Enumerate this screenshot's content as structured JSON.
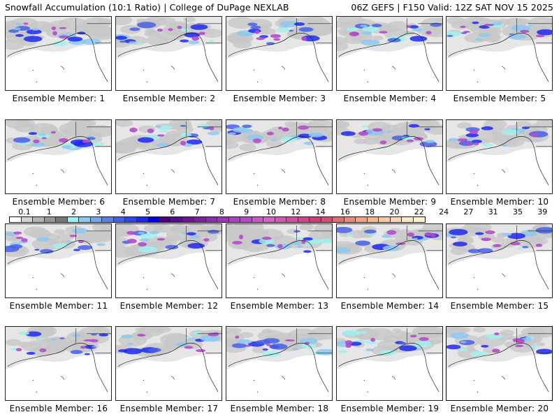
{
  "header": {
    "title_left": "Snowfall Accumulation (10:1 Ratio) | College of DuPage NEXLAB",
    "title_right": "06Z GEFS | F150 Valid: 12Z SAT NOV 15 2025"
  },
  "panels": [
    {
      "label": "Ensemble Member: 1"
    },
    {
      "label": "Ensemble Member: 2"
    },
    {
      "label": "Ensemble Member: 3"
    },
    {
      "label": "Ensemble Member: 4"
    },
    {
      "label": "Ensemble Member: 5"
    },
    {
      "label": "Ensemble Member: 6"
    },
    {
      "label": "Ensemble Member: 7"
    },
    {
      "label": "Ensemble Member: 8"
    },
    {
      "label": "Ensemble Member: 9"
    },
    {
      "label": "Ensemble Member: 10"
    },
    {
      "label": "Ensemble Member: 11"
    },
    {
      "label": "Ensemble Member: 12"
    },
    {
      "label": "Ensemble Member: 13"
    },
    {
      "label": "Ensemble Member: 14"
    },
    {
      "label": "Ensemble Member: 15"
    },
    {
      "label": "Ensemble Member: 16"
    },
    {
      "label": "Ensemble Member: 17"
    },
    {
      "label": "Ensemble Member: 18"
    },
    {
      "label": "Ensemble Member: 19"
    },
    {
      "label": "Ensemble Member: 20"
    }
  ],
  "colorbar": {
    "tick_labels": [
      "0.1",
      "1",
      "2",
      "3",
      "4",
      "5",
      "6",
      "7",
      "8",
      "9",
      "10",
      "12",
      "14",
      "16",
      "18",
      "20",
      "22",
      "24",
      "27",
      "31",
      "35",
      "39"
    ],
    "colors": [
      "#ffffff",
      "#d2d2d2",
      "#b4b4b4",
      "#969696",
      "#787878",
      "#a0f0f0",
      "#8cc8f0",
      "#78a5f0",
      "#5a82e6",
      "#465fe6",
      "#3246f0",
      "#1e28f0",
      "#0000e6",
      "#4b0082",
      "#5a0a8c",
      "#6e1496",
      "#7d23a0",
      "#8c2daa",
      "#9b37b4",
      "#aa41be",
      "#b44bc8",
      "#c85ac8",
      "#d264c8",
      "#d25ab4",
      "#d250a0",
      "#d2468c",
      "#d23c78",
      "#d25078",
      "#dc6e78",
      "#e68c78",
      "#f0a582",
      "#f5b98c",
      "#f5c8a0",
      "#fad7b4",
      "#fae6c8",
      "#fff0d2"
    ]
  }
}
